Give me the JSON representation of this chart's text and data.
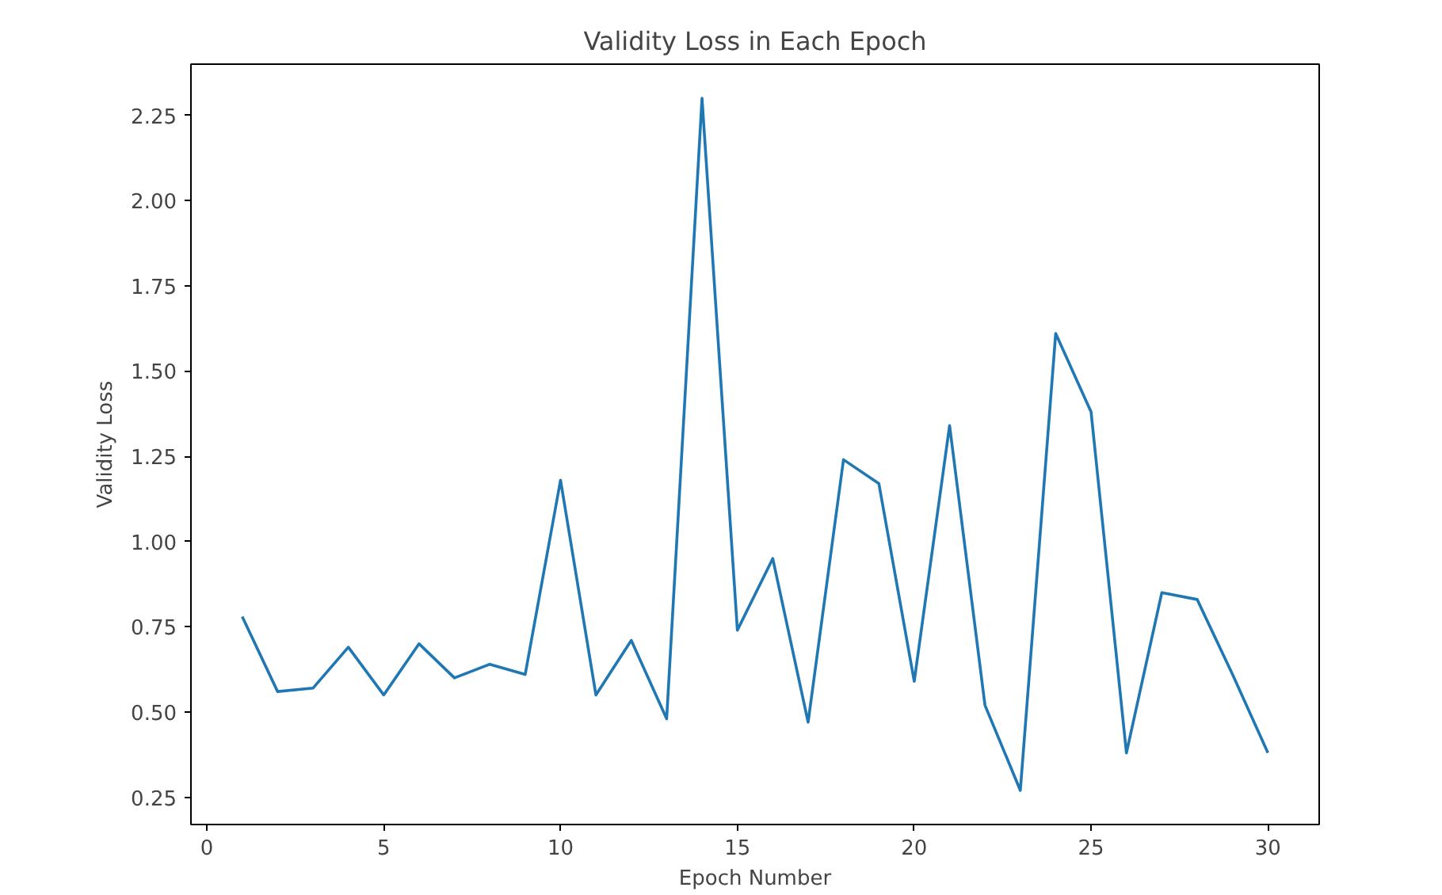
{
  "chart_data": {
    "type": "line",
    "title": "Validity Loss in Each Epoch",
    "xlabel": "Epoch Number",
    "ylabel": "Validity Loss",
    "x": [
      1,
      2,
      3,
      4,
      5,
      6,
      7,
      8,
      9,
      10,
      11,
      12,
      13,
      14,
      15,
      16,
      17,
      18,
      19,
      20,
      21,
      22,
      23,
      24,
      25,
      26,
      27,
      28,
      29,
      30
    ],
    "series": [
      {
        "color": "#1f77b4",
        "values": [
          0.78,
          0.56,
          0.57,
          0.69,
          0.55,
          0.7,
          0.6,
          0.64,
          0.61,
          1.18,
          0.55,
          0.71,
          0.48,
          2.3,
          0.74,
          0.95,
          0.47,
          1.24,
          1.17,
          0.59,
          1.34,
          0.52,
          0.27,
          1.61,
          1.38,
          0.38,
          0.85,
          0.83,
          0.61,
          0.38
        ]
      }
    ],
    "xlim": [
      -0.45,
      31.45
    ],
    "ylim": [
      0.17,
      2.4
    ],
    "xticks": [
      0,
      5,
      10,
      15,
      20,
      25,
      30
    ],
    "yticks": [
      {
        "value": 0.25,
        "label": "0.25"
      },
      {
        "value": 0.5,
        "label": "0.50"
      },
      {
        "value": 0.75,
        "label": "0.75"
      },
      {
        "value": 1.0,
        "label": "1.00"
      },
      {
        "value": 1.25,
        "label": "1.25"
      },
      {
        "value": 1.5,
        "label": "1.50"
      },
      {
        "value": 1.75,
        "label": "1.75"
      },
      {
        "value": 2.0,
        "label": "2.00"
      },
      {
        "value": 2.25,
        "label": "2.25"
      }
    ],
    "grid": false
  }
}
